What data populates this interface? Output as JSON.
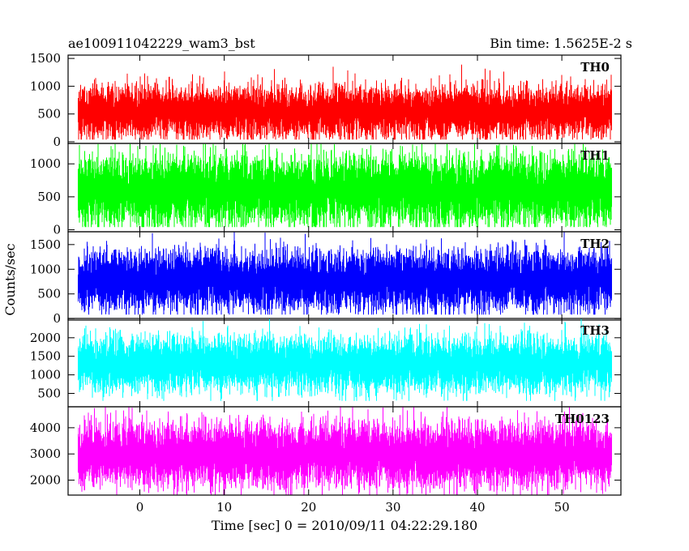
{
  "chart_data": {
    "type": "line",
    "title_left": "ae100911042229_wam3_bst",
    "title_right": "Bin time: 1.5625E-2 s",
    "xlabel": "Time [sec] 0 = 2010/09/11 04:22:29.180",
    "ylabel": "Counts/sec",
    "xlim": [
      -8.5,
      57
    ],
    "xticks": [
      0,
      10,
      20,
      30,
      40,
      50
    ],
    "data_x_range": [
      -7.3,
      55.9
    ],
    "bin_time": 0.015625,
    "grid": false,
    "legend": "none",
    "panels": [
      {
        "name": "TH0",
        "color": "#ff0000",
        "ylim": [
          -30,
          1560
        ],
        "yticks": [
          0,
          500,
          1000,
          1500
        ],
        "baseline": 560,
        "spread": 200,
        "min_clip": 40,
        "max_clip": 1560
      },
      {
        "name": "TH1",
        "color": "#00ff00",
        "ylim": [
          -30,
          1310
        ],
        "yticks": [
          0,
          500,
          1000
        ],
        "baseline": 620,
        "spread": 230,
        "min_clip": 40,
        "max_clip": 1300
      },
      {
        "name": "TH2",
        "color": "#0000ff",
        "ylim": [
          -30,
          1760
        ],
        "yticks": [
          0,
          500,
          1000,
          1500
        ],
        "baseline": 800,
        "spread": 260,
        "min_clip": 80,
        "max_clip": 1760
      },
      {
        "name": "TH3",
        "color": "#00ffff",
        "ylim": [
          140,
          2520
        ],
        "yticks": [
          500,
          1000,
          1500,
          2000
        ],
        "baseline": 1320,
        "spread": 320,
        "min_clip": 300,
        "max_clip": 2520
      },
      {
        "name": "TH0123",
        "color": "#ff00ff",
        "ylim": [
          1430,
          4800
        ],
        "yticks": [
          2000,
          3000,
          4000
        ],
        "baseline": 3040,
        "spread": 520,
        "min_clip": 1430,
        "max_clip": 4800
      }
    ]
  }
}
